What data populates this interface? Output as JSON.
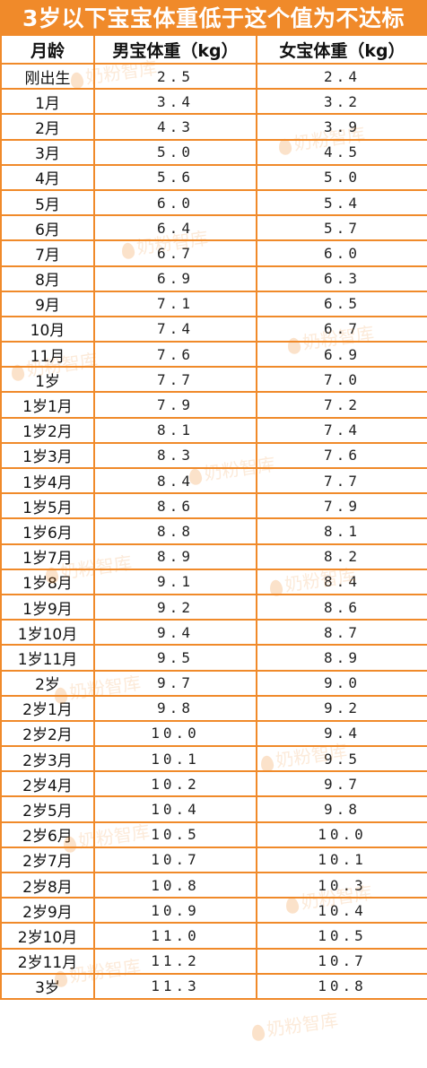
{
  "title": "3岁以下宝宝体重低于这个值为不达标",
  "headers": [
    "月龄",
    "男宝体重（kg）",
    "女宝体重（kg）"
  ],
  "watermark": "奶粉智库",
  "rows": [
    [
      "刚出生",
      "2.5",
      "2.4"
    ],
    [
      "1月",
      "3.4",
      "3.2"
    ],
    [
      "2月",
      "4.3",
      "3.9"
    ],
    [
      "3月",
      "5.0",
      "4.5"
    ],
    [
      "4月",
      "5.6",
      "5.0"
    ],
    [
      "5月",
      "6.0",
      "5.4"
    ],
    [
      "6月",
      "6.4",
      "5.7"
    ],
    [
      "7月",
      "6.7",
      "6.0"
    ],
    [
      "8月",
      "6.9",
      "6.3"
    ],
    [
      "9月",
      "7.1",
      "6.5"
    ],
    [
      "10月",
      "7.4",
      "6.7"
    ],
    [
      "11月",
      "7.6",
      "6.9"
    ],
    [
      "1岁",
      "7.7",
      "7.0"
    ],
    [
      "1岁1月",
      "7.9",
      "7.2"
    ],
    [
      "1岁2月",
      "8.1",
      "7.4"
    ],
    [
      "1岁3月",
      "8.3",
      "7.6"
    ],
    [
      "1岁4月",
      "8.4",
      "7.7"
    ],
    [
      "1岁5月",
      "8.6",
      "7.9"
    ],
    [
      "1岁6月",
      "8.8",
      "8.1"
    ],
    [
      "1岁7月",
      "8.9",
      "8.2"
    ],
    [
      "1岁8月",
      "9.1",
      "8.4"
    ],
    [
      "1岁9月",
      "9.2",
      "8.6"
    ],
    [
      "1岁10月",
      "9.4",
      "8.7"
    ],
    [
      "1岁11月",
      "9.5",
      "8.9"
    ],
    [
      "2岁",
      "9.7",
      "9.0"
    ],
    [
      "2岁1月",
      "9.8",
      "9.2"
    ],
    [
      "2岁2月",
      "10.0",
      "9.4"
    ],
    [
      "2岁3月",
      "10.1",
      "9.5"
    ],
    [
      "2岁4月",
      "10.2",
      "9.7"
    ],
    [
      "2岁5月",
      "10.4",
      "9.8"
    ],
    [
      "2岁6月",
      "10.5",
      "10.0"
    ],
    [
      "2岁7月",
      "10.7",
      "10.1"
    ],
    [
      "2岁8月",
      "10.8",
      "10.3"
    ],
    [
      "2岁9月",
      "10.9",
      "10.4"
    ],
    [
      "2岁10月",
      "11.0",
      "10.5"
    ],
    [
      "2岁11月",
      "11.2",
      "10.7"
    ],
    [
      "3岁",
      "11.3",
      "10.8"
    ]
  ]
}
